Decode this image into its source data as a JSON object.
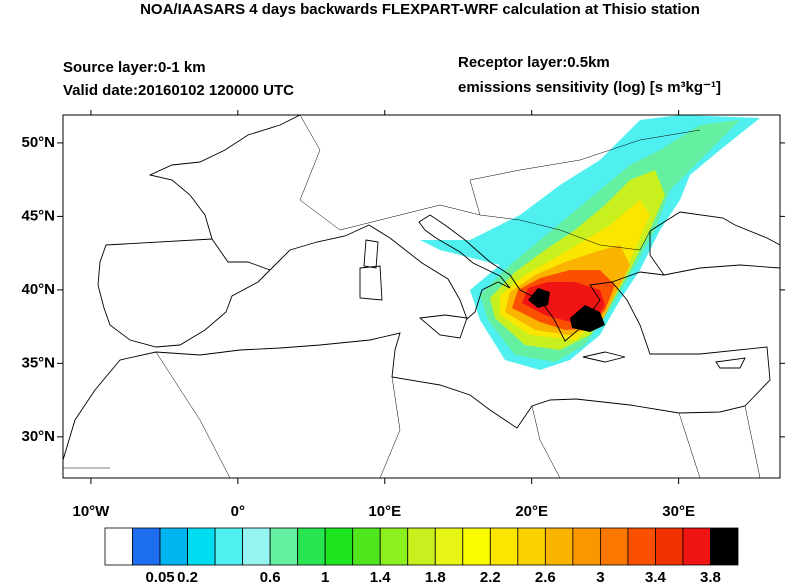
{
  "title": "NOA/IAASARS 4 days backwards FLEXPART-WRF calculation at Thisio station",
  "source_layer": "Source layer:0-1 km",
  "valid_date": "Valid date:20160102 120000 UTC",
  "receptor_layer": "Receptor layer:0.5km",
  "units": "emissions sensitivity (log) [s m³kg⁻¹]",
  "map": {
    "xlim": [
      -11.9,
      36.9
    ],
    "ylim": [
      27.2,
      51.9
    ],
    "xticks": [
      {
        "value": -10,
        "label": "10°W"
      },
      {
        "value": 0,
        "label": "0°"
      },
      {
        "value": 10,
        "label": "10°E"
      },
      {
        "value": 20,
        "label": "20°E"
      },
      {
        "value": 30,
        "label": "30°E"
      }
    ],
    "yticks": [
      {
        "value": 30,
        "label": "30°N"
      },
      {
        "value": 35,
        "label": "35°N"
      },
      {
        "value": 40,
        "label": "40°N"
      },
      {
        "value": 45,
        "label": "45°N"
      },
      {
        "value": 50,
        "label": "50°N"
      }
    ]
  },
  "colorbar": {
    "colors": [
      "#ffffff",
      "#1e6ef0",
      "#00b4f0",
      "#00dcf0",
      "#50f0f0",
      "#96f5f0",
      "#64f0a0",
      "#28e650",
      "#1ee61e",
      "#50e61e",
      "#8cf01e",
      "#c8f01e",
      "#e6f514",
      "#fafa00",
      "#fae600",
      "#fad200",
      "#fab400",
      "#fa9600",
      "#fa7800",
      "#fa5000",
      "#f03200",
      "#f01414",
      "#000000"
    ],
    "labels": [
      0.05,
      0.2,
      0.6,
      1,
      1.4,
      1.8,
      2.2,
      2.6,
      3,
      3.4,
      3.8
    ]
  }
}
